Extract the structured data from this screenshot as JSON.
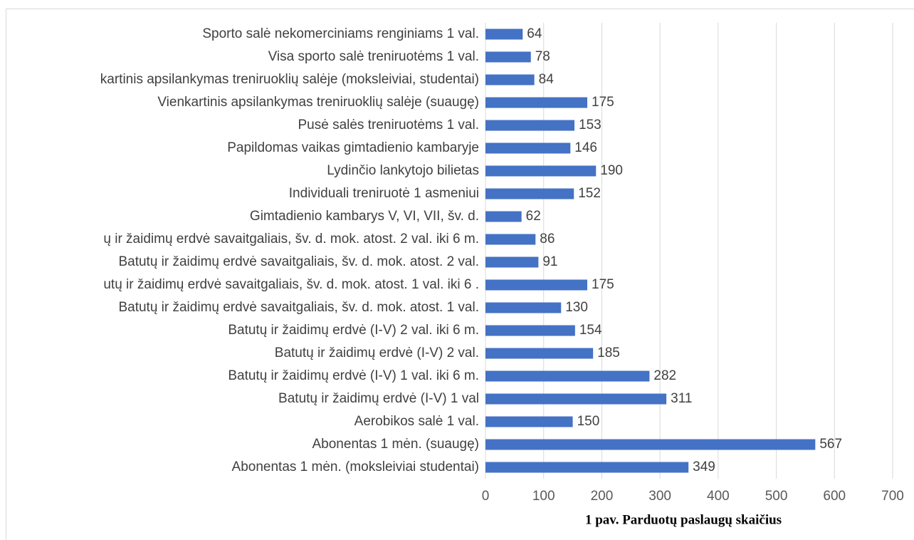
{
  "chart_data": {
    "type": "bar",
    "orientation": "horizontal",
    "title": "1 pav. Parduotų paslaugų skaičius",
    "categories": [
      "Sporto salė nekomerciniams renginiams 1 val.",
      "Visa sporto salė treniruotėms 1 val.",
      "kartinis apsilankymas treniruoklių salėje (moksleiviai, studentai)",
      "Vienkartinis apsilankymas treniruoklių salėje (suaugę)",
      "Pusė salės treniruotėms 1 val.",
      "Papildomas vaikas gimtadienio kambaryje",
      "Lydinčio lankytojo bilietas",
      "Individuali treniruotė 1 asmeniui",
      "Gimtadienio kambarys V, VI, VII, šv. d.",
      "ų ir žaidimų erdvė savaitgaliais, šv. d. mok. atost. 2 val. iki 6 m.",
      "Batutų ir žaidimų erdvė savaitgaliais, šv. d. mok. atost. 2 val.",
      "utų ir žaidimų erdvė savaitgaliais, šv. d. mok. atost. 1 val. iki 6 .",
      "Batutų ir žaidimų erdvė savaitgaliais, šv. d. mok. atost. 1 val.",
      "Batutų ir žaidimų erdvė (I-V) 2 val. iki 6 m.",
      "Batutų ir žaidimų erdvė (I-V) 2 val.",
      "Batutų ir žaidimų erdvė (I-V) 1 val. iki 6 m.",
      "Batutų ir žaidimų erdvė (I-V) 1 val",
      "Aerobikos salė 1 val.",
      "Abonentas 1 mėn. (suaugę)",
      "Abonentas 1 mėn. (moksleiviai studentai)"
    ],
    "values": [
      64,
      78,
      84,
      175,
      153,
      146,
      190,
      152,
      62,
      86,
      91,
      175,
      130,
      154,
      185,
      282,
      311,
      150,
      567,
      349
    ],
    "color": "#4472c4",
    "xlim": [
      0,
      700
    ],
    "xticks": [
      0,
      100,
      200,
      300,
      400,
      500,
      600,
      700
    ],
    "grid": true
  }
}
